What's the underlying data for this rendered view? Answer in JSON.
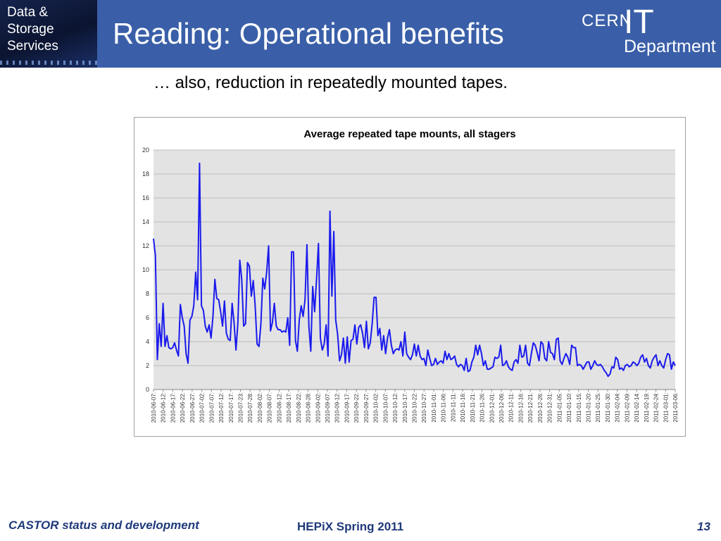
{
  "header": {
    "badge_lines": [
      "Data &",
      "Storage",
      "Services"
    ],
    "title": "Reading: Operational benefits",
    "logo": {
      "cern": "CERN",
      "it": "IT",
      "department": "Department"
    }
  },
  "subtitle": "… also, reduction in repeatedly mounted tapes.",
  "footer": {
    "left": "CASTOR status and development",
    "center": "HEPiX Spring 2011",
    "page": "13"
  },
  "colors": {
    "header_bg": "#3a5fa8",
    "series": "#1a1aee",
    "plot_bg": "#e3e3e3",
    "footer_text": "#1f3a7a"
  },
  "chart_data": {
    "type": "line",
    "title": "Average repeated tape mounts, all stagers",
    "xlabel": "",
    "ylabel": "",
    "ylim": [
      0,
      20
    ],
    "yticks": [
      0,
      2,
      4,
      6,
      8,
      10,
      12,
      14,
      16,
      18,
      20
    ],
    "grid": true,
    "legend": "none",
    "x_tick_labels": [
      "2010-06-07:",
      "2010-06-12:",
      "2010-06-17:",
      "2010-06-22:",
      "2010-06-27:",
      "2010-07-02:",
      "2010-07-07:",
      "2010-07-12:",
      "2010-07-17:",
      "2010-07-23:",
      "2010-07-28:",
      "2010-08-02:",
      "2010-08-07:",
      "2010-08-12:",
      "2010-08-17:",
      "2010-08-22:",
      "2010-08-28:",
      "2010-09-02:",
      "2010-09-07:",
      "2010-09-12:",
      "2010-09-17:",
      "2010-09-22:",
      "2010-09-27:",
      "2010-10-02:",
      "2010-10-07:",
      "2010-10-12:",
      "2010-10-17:",
      "2010-10-22:",
      "2010-10-27:",
      "2010-11-01:",
      "2010-11-06:",
      "2010-11-11:",
      "2010-11-16:",
      "2010-11-21:",
      "2010-11-26:",
      "2010-12-01:",
      "2010-12-06:",
      "2010-12-11:",
      "2010-12-16:",
      "2010-12-21:",
      "2010-12-26:",
      "2010-12-31:",
      "2011-01-05:",
      "2011-01-10:",
      "2011-01-15:",
      "2011-01-20:",
      "2011-01-25:",
      "2011-01-30:",
      "2011-02-04:",
      "2011-02-09:",
      "2011-02-14:",
      "2011-02-19:",
      "2011-02-24:",
      "2011-03-01:",
      "2011-03-06:"
    ],
    "values": [
      12.6,
      11.2,
      2.5,
      5.5,
      3.6,
      7.2,
      3.6,
      4.5,
      3.5,
      3.4,
      3.5,
      3.9,
      3.3,
      2.8,
      7.1,
      6.0,
      5.3,
      3.0,
      2.2,
      5.8,
      6.1,
      7.0,
      9.8,
      7.5,
      18.9,
      7.0,
      6.6,
      5.3,
      4.8,
      5.4,
      4.3,
      6.1,
      9.2,
      7.6,
      7.5,
      6.5,
      5.3,
      7.4,
      4.7,
      4.2,
      4.1,
      7.2,
      5.6,
      3.3,
      5.6,
      10.8,
      9.2,
      5.3,
      5.5,
      10.6,
      10.3,
      7.8,
      9.1,
      7.0,
      3.8,
      3.6,
      5.5,
      9.3,
      8.4,
      9.8,
      12.0,
      4.9,
      5.6,
      7.2,
      5.3,
      5.0,
      5.0,
      4.8,
      4.9,
      4.8,
      6.0,
      3.7,
      11.5,
      11.5,
      4.1,
      3.2,
      5.8,
      7.0,
      6.1,
      7.5,
      12.1,
      5.3,
      3.2,
      8.6,
      6.5,
      9.2,
      12.2,
      4.3,
      3.3,
      3.8,
      5.4,
      2.8,
      14.9,
      7.8,
      13.2,
      5.8,
      4.6,
      2.4,
      2.9,
      4.3,
      2.2,
      4.4,
      2.3,
      4.1,
      4.2,
      5.4,
      3.8,
      5.2,
      5.4,
      4.7,
      3.5,
      5.7,
      3.4,
      3.9,
      5.5,
      7.7,
      7.7,
      4.5,
      5.1,
      3.3,
      4.5,
      3.0,
      4.3,
      5.0,
      3.7,
      3.0,
      3.3,
      3.4,
      3.3,
      4.0,
      2.8,
      4.8,
      3.0,
      2.7,
      2.5,
      2.9,
      3.8,
      2.8,
      3.7,
      2.8,
      2.5,
      2.6,
      2.0,
      3.3,
      2.6,
      2.0,
      2.1,
      2.6,
      2.1,
      2.3,
      2.4,
      2.2,
      3.2,
      2.5,
      3.0,
      2.5,
      2.6,
      2.8,
      2.1,
      1.9,
      2.1,
      2.0,
      1.6,
      2.6,
      1.5,
      1.6,
      2.3,
      2.7,
      3.7,
      2.9,
      3.7,
      3.0,
      2.0,
      2.4,
      1.7,
      1.7,
      1.8,
      1.9,
      2.7,
      2.6,
      2.7,
      3.7,
      2.0,
      2.1,
      2.4,
      1.9,
      1.7,
      1.6,
      2.3,
      2.5,
      2.2,
      3.7,
      2.7,
      2.8,
      3.7,
      2.2,
      2.0,
      3.0,
      3.9,
      3.7,
      3.1,
      2.4,
      4.0,
      3.8,
      2.6,
      2.4,
      4.0,
      3.1,
      3.0,
      2.5,
      4.2,
      4.3,
      2.4,
      2.1,
      2.6,
      3.0,
      2.7,
      2.1,
      3.7,
      3.5,
      3.5,
      2.0,
      2.1,
      2.0,
      1.7,
      2.0,
      2.3,
      2.3,
      1.7,
      2.0,
      2.4,
      2.1,
      2.0,
      2.1,
      1.9,
      1.6,
      1.4,
      1.1,
      1.3,
      1.9,
      1.8,
      2.7,
      2.5,
      1.7,
      1.8,
      1.6,
      2.0,
      2.1,
      1.9,
      2.0,
      2.3,
      2.2,
      2.0,
      2.2,
      2.7,
      2.9,
      2.3,
      2.6,
      2.0,
      1.8,
      2.4,
      2.7,
      2.9,
      2.0,
      2.4,
      2.0,
      1.8,
      2.5,
      3.0,
      2.9,
      1.7,
      2.3,
      2.0
    ]
  }
}
